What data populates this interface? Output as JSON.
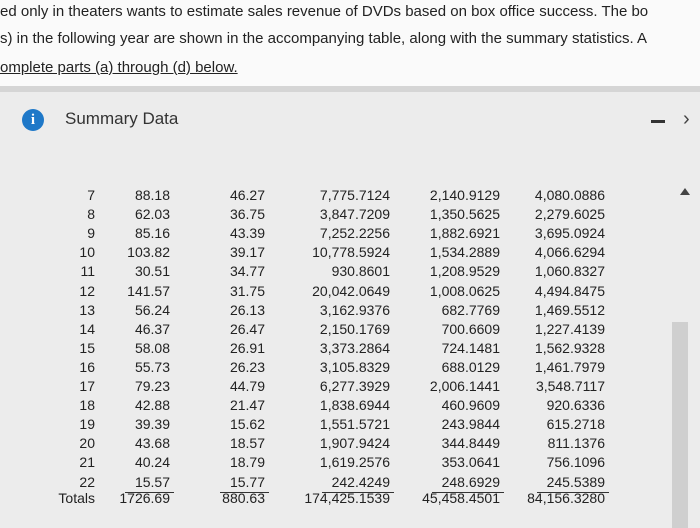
{
  "intro": {
    "lines": [
      "ed only in theaters wants to estimate sales revenue of DVDs based on box office success. The bo",
      "s) in the following year are shown in the accompanying table, along with the summary statistics. A",
      "omplete parts (a) through (d) below."
    ]
  },
  "panel": {
    "title": "Summary Data",
    "icon": "i"
  },
  "table": {
    "rows": [
      [
        "7",
        "88.18",
        "46.27",
        "7,775.7124",
        "2,140.9129",
        "4,080.0886"
      ],
      [
        "8",
        "62.03",
        "36.75",
        "3,847.7209",
        "1,350.5625",
        "2,279.6025"
      ],
      [
        "9",
        "85.16",
        "43.39",
        "7,252.2256",
        "1,882.6921",
        "3,695.0924"
      ],
      [
        "10",
        "103.82",
        "39.17",
        "10,778.5924",
        "1,534.2889",
        "4,066.6294"
      ],
      [
        "11",
        "30.51",
        "34.77",
        "930.8601",
        "1,208.9529",
        "1,060.8327"
      ],
      [
        "12",
        "141.57",
        "31.75",
        "20,042.0649",
        "1,008.0625",
        "4,494.8475"
      ],
      [
        "13",
        "56.24",
        "26.13",
        "3,162.9376",
        "682.7769",
        "1,469.5512"
      ],
      [
        "14",
        "46.37",
        "26.47",
        "2,150.1769",
        "700.6609",
        "1,227.4139"
      ],
      [
        "15",
        "58.08",
        "26.91",
        "3,373.2864",
        "724.1481",
        "1,562.9328"
      ],
      [
        "16",
        "55.73",
        "26.23",
        "3,105.8329",
        "688.0129",
        "1,461.7979"
      ],
      [
        "17",
        "79.23",
        "44.79",
        "6,277.3929",
        "2,006.1441",
        "3,548.7117"
      ],
      [
        "18",
        "42.88",
        "21.47",
        "1,838.6944",
        "460.9609",
        "920.6336"
      ],
      [
        "19",
        "39.39",
        "15.62",
        "1,551.5721",
        "243.9844",
        "615.2718"
      ],
      [
        "20",
        "43.68",
        "18.57",
        "1,907.9424",
        "344.8449",
        "811.1376"
      ],
      [
        "21",
        "40.24",
        "18.79",
        "1,619.2576",
        "353.0641",
        "756.1096"
      ],
      [
        "22",
        "15.57",
        "15.77",
        "242.4249",
        "248.6929",
        "245.5389"
      ],
      [
        "Totals",
        "1726.69",
        "880.63",
        "174,425.1539",
        "45,458.4501",
        "84,156.3280"
      ]
    ]
  }
}
